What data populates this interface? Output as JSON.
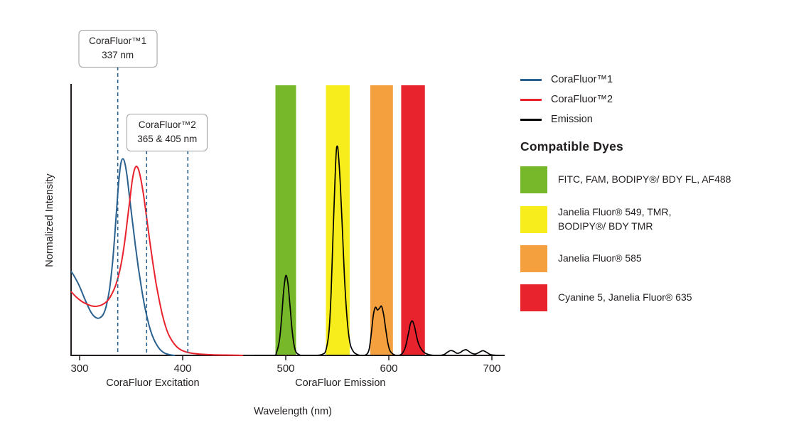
{
  "chart_data": {
    "type": "line",
    "title": "",
    "xlabel": "Wavelength (nm)",
    "ylabel": "Normalized Intensity",
    "xlim": [
      291,
      712
    ],
    "ylim": [
      0,
      1.0
    ],
    "x_ticks": [
      300,
      400,
      500,
      600,
      700
    ],
    "grid": false,
    "axis_color": "#231f20",
    "axis_sublabels": [
      {
        "text": "CoraFluor Excitation",
        "x": 371
      },
      {
        "text": "CoraFluor Emission",
        "x": 553
      }
    ],
    "bands": [
      {
        "name": "FITC-FAM-BODIPY-FL-AF488-band",
        "color": "#76b82a",
        "x1": 490,
        "x2": 510
      },
      {
        "name": "JF549-TMR-BODIPY-TMR-band",
        "color": "#f8ed1c",
        "x1": 539,
        "x2": 562
      },
      {
        "name": "JF585-band",
        "color": "#f5a03e",
        "x1": 582,
        "x2": 604
      },
      {
        "name": "Cy5-JF635-band",
        "color": "#e8232d",
        "x1": 612,
        "x2": 635
      }
    ],
    "dashed_markers": {
      "color": "#2a618f",
      "lines": [
        {
          "x": 337,
          "from_annotation": 0
        },
        {
          "x": 365,
          "from_annotation": 1
        },
        {
          "x": 405,
          "from_annotation": 1
        }
      ]
    },
    "annotations": [
      {
        "line1": "CoraFluor™1",
        "line2": "337 nm"
      },
      {
        "line1": "CoraFluor™2",
        "line2": "365 & 405 nm"
      }
    ],
    "series": [
      {
        "name": "CoraFluor™1",
        "color": "#2a618f",
        "width": 2,
        "points": [
          [
            292,
            0.31
          ],
          [
            296,
            0.285
          ],
          [
            300,
            0.255
          ],
          [
            304,
            0.218
          ],
          [
            308,
            0.183
          ],
          [
            311,
            0.16
          ],
          [
            314,
            0.145
          ],
          [
            317,
            0.138
          ],
          [
            320,
            0.14
          ],
          [
            323,
            0.152
          ],
          [
            326,
            0.185
          ],
          [
            329,
            0.245
          ],
          [
            332,
            0.345
          ],
          [
            334,
            0.44
          ],
          [
            336,
            0.545
          ],
          [
            338,
            0.645
          ],
          [
            340,
            0.71
          ],
          [
            342,
            0.728
          ],
          [
            344,
            0.71
          ],
          [
            346,
            0.665
          ],
          [
            348,
            0.6
          ],
          [
            351,
            0.505
          ],
          [
            354,
            0.41
          ],
          [
            357,
            0.325
          ],
          [
            360,
            0.25
          ],
          [
            363,
            0.185
          ],
          [
            366,
            0.132
          ],
          [
            369,
            0.09
          ],
          [
            372,
            0.06
          ],
          [
            375,
            0.038
          ],
          [
            378,
            0.022
          ],
          [
            381,
            0.012
          ],
          [
            384,
            0.006
          ],
          [
            388,
            0.002
          ],
          [
            392,
            0
          ]
        ]
      },
      {
        "name": "CoraFluor™2",
        "color": "#e8232d",
        "width": 2,
        "points": [
          [
            292,
            0.235
          ],
          [
            297,
            0.215
          ],
          [
            302,
            0.2
          ],
          [
            307,
            0.19
          ],
          [
            312,
            0.183
          ],
          [
            317,
            0.182
          ],
          [
            322,
            0.188
          ],
          [
            327,
            0.202
          ],
          [
            331,
            0.225
          ],
          [
            335,
            0.26
          ],
          [
            339,
            0.315
          ],
          [
            343,
            0.4
          ],
          [
            346,
            0.49
          ],
          [
            349,
            0.585
          ],
          [
            351,
            0.645
          ],
          [
            353,
            0.685
          ],
          [
            355,
            0.7
          ],
          [
            357,
            0.69
          ],
          [
            359,
            0.66
          ],
          [
            362,
            0.595
          ],
          [
            365,
            0.51
          ],
          [
            368,
            0.425
          ],
          [
            371,
            0.345
          ],
          [
            374,
            0.27
          ],
          [
            377,
            0.21
          ],
          [
            380,
            0.155
          ],
          [
            383,
            0.113
          ],
          [
            386,
            0.08
          ],
          [
            390,
            0.052
          ],
          [
            394,
            0.033
          ],
          [
            398,
            0.021
          ],
          [
            403,
            0.013
          ],
          [
            409,
            0.008
          ],
          [
            416,
            0.005
          ],
          [
            424,
            0.003
          ],
          [
            434,
            0.0015
          ],
          [
            446,
            0.001
          ],
          [
            458,
            0
          ]
        ]
      },
      {
        "name": "Emission",
        "color": "#000000",
        "width": 1.7,
        "points": [
          [
            470,
            0
          ],
          [
            488,
            0
          ],
          [
            491,
            0.01
          ],
          [
            494,
            0.06
          ],
          [
            496,
            0.14
          ],
          [
            498,
            0.24
          ],
          [
            500,
            0.295
          ],
          [
            502,
            0.27
          ],
          [
            504,
            0.19
          ],
          [
            506,
            0.1
          ],
          [
            508,
            0.04
          ],
          [
            510,
            0.012
          ],
          [
            513,
            0.003
          ],
          [
            516,
            0
          ],
          [
            530,
            0
          ],
          [
            536,
            0.005
          ],
          [
            539,
            0.02
          ],
          [
            542,
            0.09
          ],
          [
            544,
            0.23
          ],
          [
            546,
            0.46
          ],
          [
            548,
            0.67
          ],
          [
            549,
            0.755
          ],
          [
            550,
            0.775
          ],
          [
            551,
            0.75
          ],
          [
            553,
            0.63
          ],
          [
            555,
            0.46
          ],
          [
            557,
            0.29
          ],
          [
            559,
            0.16
          ],
          [
            561,
            0.08
          ],
          [
            563,
            0.035
          ],
          [
            566,
            0.012
          ],
          [
            569,
            0.004
          ],
          [
            572,
            0
          ],
          [
            576,
            0
          ],
          [
            579,
            0.006
          ],
          [
            581,
            0.025
          ],
          [
            583,
            0.08
          ],
          [
            585,
            0.15
          ],
          [
            587,
            0.178
          ],
          [
            589,
            0.168
          ],
          [
            591,
            0.175
          ],
          [
            593,
            0.182
          ],
          [
            595,
            0.15
          ],
          [
            597,
            0.098
          ],
          [
            599,
            0.048
          ],
          [
            601,
            0.018
          ],
          [
            604,
            0.005
          ],
          [
            607,
            0
          ],
          [
            610,
            0
          ],
          [
            613,
            0.007
          ],
          [
            616,
            0.03
          ],
          [
            619,
            0.08
          ],
          [
            621,
            0.118
          ],
          [
            623,
            0.127
          ],
          [
            625,
            0.105
          ],
          [
            627,
            0.07
          ],
          [
            629,
            0.042
          ],
          [
            632,
            0.02
          ],
          [
            635,
            0.009
          ],
          [
            639,
            0.003
          ],
          [
            644,
            0
          ],
          [
            650,
            0
          ],
          [
            654,
            0.004
          ],
          [
            657,
            0.012
          ],
          [
            660,
            0.018
          ],
          [
            663,
            0.015
          ],
          [
            666,
            0.008
          ],
          [
            669,
            0.01
          ],
          [
            672,
            0.018
          ],
          [
            675,
            0.021
          ],
          [
            678,
            0.014
          ],
          [
            681,
            0.007
          ],
          [
            684,
            0.005
          ],
          [
            687,
            0.01
          ],
          [
            690,
            0.016
          ],
          [
            692,
            0.017
          ],
          [
            695,
            0.011
          ],
          [
            698,
            0.004
          ],
          [
            702,
            0.001
          ],
          [
            706,
            0
          ]
        ]
      }
    ]
  },
  "legend": {
    "items": [
      {
        "label": "CoraFluor™1",
        "color": "#2a618f"
      },
      {
        "label": "CoraFluor™2",
        "color": "#e8232d"
      },
      {
        "label": "Emission",
        "color": "#000000"
      }
    ]
  },
  "dyes": {
    "title": "Compatible Dyes",
    "items": [
      {
        "color": "#76b82a",
        "lines": [
          "FITC, FAM, BODIPY®/ BDY FL, AF488"
        ]
      },
      {
        "color": "#f8ed1c",
        "lines": [
          "Janelia Fluor® 549, TMR,",
          "BODIPY®/ BDY TMR"
        ]
      },
      {
        "color": "#f5a03e",
        "lines": [
          "Janelia Fluor® 585"
        ]
      },
      {
        "color": "#e8232d",
        "lines": [
          "Cyanine 5, Janelia Fluor® 635"
        ]
      }
    ]
  }
}
